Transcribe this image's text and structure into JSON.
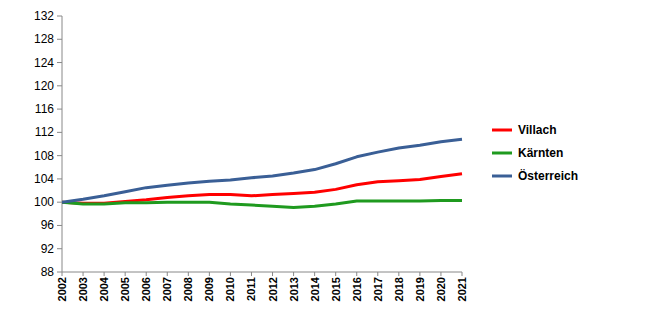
{
  "chart_data": {
    "type": "line",
    "categories": [
      "2002",
      "2003",
      "2004",
      "2005",
      "2006",
      "2007",
      "2008",
      "2009",
      "2010",
      "2011",
      "2012",
      "2013",
      "2014",
      "2015",
      "2016",
      "2017",
      "2018",
      "2019",
      "2020",
      "2021"
    ],
    "series": [
      {
        "name": "Villach",
        "color": "#ff0000",
        "values": [
          100,
          99.8,
          99.8,
          100.1,
          100.4,
          100.8,
          101.1,
          101.3,
          101.3,
          101.1,
          101.3,
          101.5,
          101.7,
          102.2,
          103.0,
          103.5,
          103.7,
          103.9,
          104.4,
          104.9
        ]
      },
      {
        "name": "Kärnten",
        "color": "#1f9a1f",
        "values": [
          100,
          99.7,
          99.7,
          99.9,
          99.9,
          100.0,
          100.0,
          100.0,
          99.7,
          99.5,
          99.3,
          99.1,
          99.3,
          99.7,
          100.2,
          100.2,
          100.2,
          100.2,
          100.3,
          100.3
        ]
      },
      {
        "name": "Österreich",
        "color": "#3a5f96",
        "values": [
          100,
          100.5,
          101.1,
          101.8,
          102.5,
          102.9,
          103.3,
          103.6,
          103.8,
          104.2,
          104.5,
          105.0,
          105.6,
          106.6,
          107.8,
          108.6,
          109.3,
          109.8,
          110.4,
          110.8
        ]
      }
    ],
    "ylim": [
      88,
      132
    ],
    "yticks": [
      88,
      92,
      96,
      100,
      104,
      108,
      112,
      116,
      120,
      124,
      128,
      132
    ],
    "grid": false,
    "legend": "right"
  }
}
